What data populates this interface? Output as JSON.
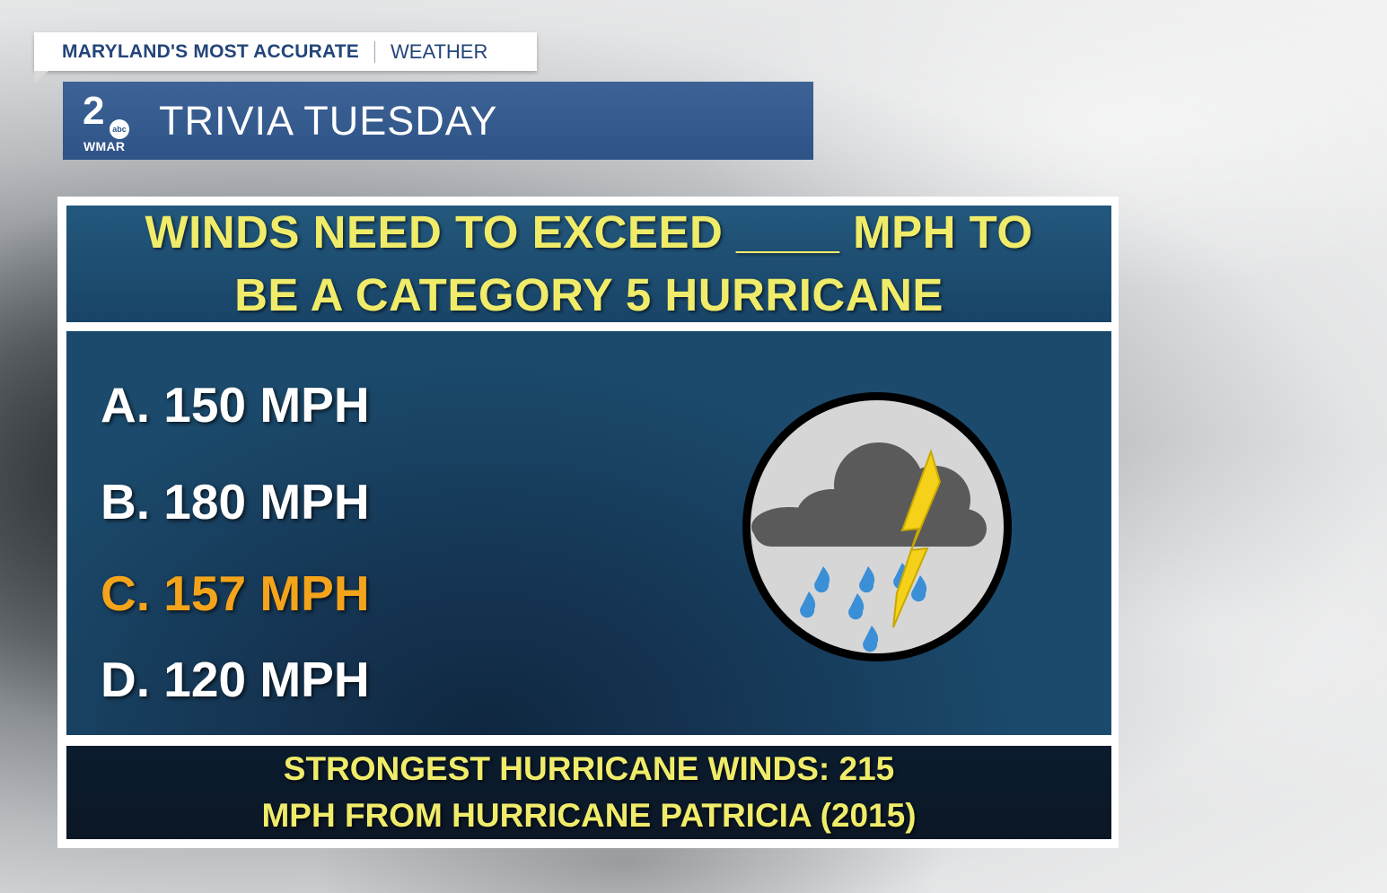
{
  "tagline": {
    "primary": "MARYLAND'S MOST ACCURATE",
    "secondary": "WEATHER"
  },
  "station": {
    "channel_number": "2",
    "network": "abc",
    "call_letters": "WMAR"
  },
  "segment_title": "TRIVIA TUESDAY",
  "question": {
    "line1": "WINDS NEED TO EXCEED ____ MPH TO",
    "line2": "BE A CATEGORY 5 HURRICANE"
  },
  "answers": [
    {
      "text": "A. 150 MPH",
      "highlighted": false
    },
    {
      "text": "B. 180 MPH",
      "highlighted": false
    },
    {
      "text": "C. 157 MPH",
      "highlighted": true
    },
    {
      "text": "D. 120 MPH",
      "highlighted": false
    }
  ],
  "fact": {
    "line1": "STRONGEST HURRICANE WINDS: 215",
    "line2": "MPH FROM HURRICANE PATRICIA (2015)"
  },
  "icon": "thunderstorm-rain-icon",
  "colors": {
    "title_bar": "#2e5387",
    "question_text": "#f0ec6a",
    "correct_answer": "#f4a41b",
    "answer_text": "#ffffff",
    "fact_text": "#f0ec6a"
  }
}
